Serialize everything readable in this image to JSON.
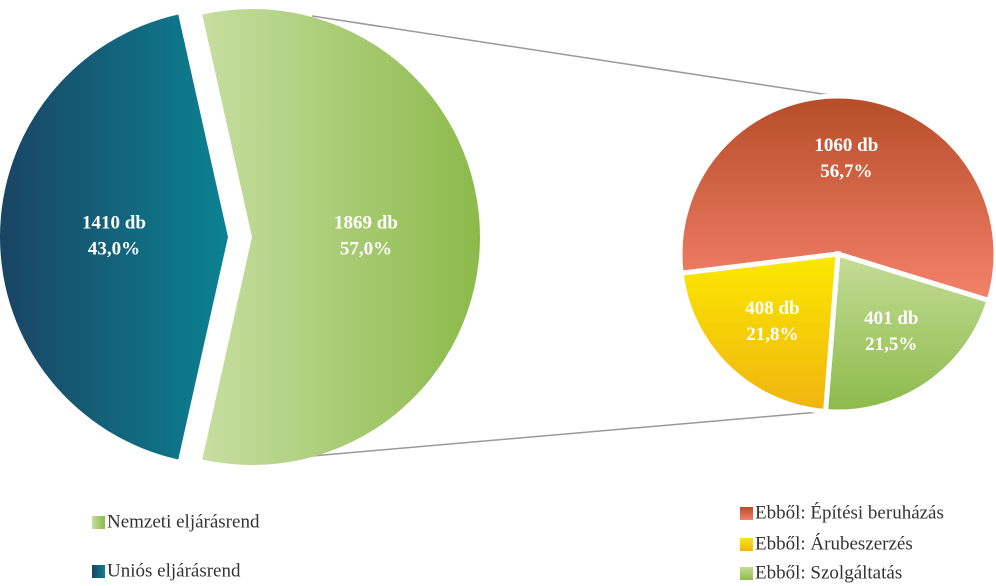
{
  "chart_data": [
    {
      "type": "pie",
      "categories": [
        "Nemzeti eljárásrend",
        "Uniós eljárásrend"
      ],
      "values": [
        57.0,
        43.0
      ],
      "value_labels": [
        "57,0%",
        "43,0%"
      ],
      "counts": [
        1869,
        1410
      ],
      "count_labels": [
        "1869 db",
        "1410 db"
      ],
      "colors": [
        [
          "#c6dea0",
          "#8cba4a"
        ],
        [
          "#1a4464",
          "#0b8292"
        ]
      ],
      "gradient": "horizontal"
    },
    {
      "type": "pie",
      "categories": [
        "Ebből: Építési beruházás",
        "Ebből: Szolgáltatás",
        "Ebből: Árubeszerzés"
      ],
      "values": [
        56.7,
        21.5,
        21.8
      ],
      "value_labels": [
        "56,7%",
        "21,5%",
        "21,8%"
      ],
      "counts": [
        1060,
        401,
        408
      ],
      "count_labels": [
        "1060 db",
        "401 db",
        "408 db"
      ],
      "colors": [
        [
          "#b64c28",
          "#f4826a"
        ],
        [
          "#c4dc96",
          "#8cba4a"
        ],
        [
          "#fbe800",
          "#f0b410"
        ]
      ],
      "gradient": "vertical"
    }
  ]
}
